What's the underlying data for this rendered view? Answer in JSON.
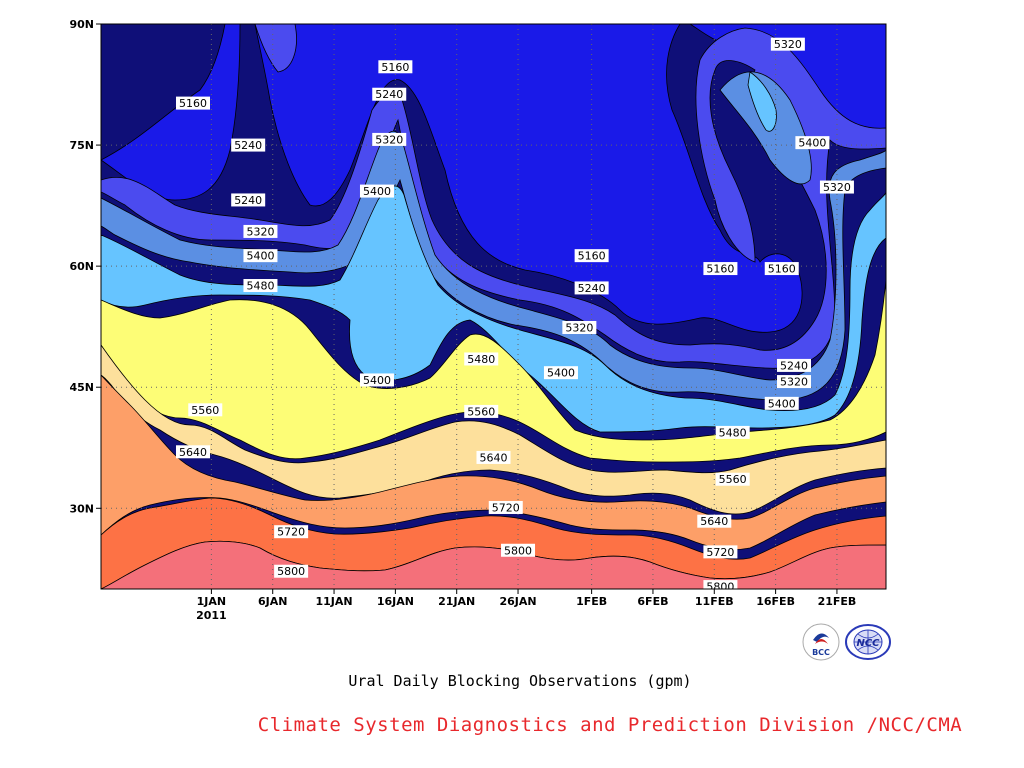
{
  "chart_data": {
    "type": "contour",
    "title": "Ural Daily Blocking Observations (gpm)",
    "xlabel": "",
    "ylabel": "",
    "x_ticks": [
      "1JAN",
      "6JAN",
      "11JAN",
      "16JAN",
      "21JAN",
      "26JAN",
      "1FEB",
      "6FEB",
      "11FEB",
      "16FEB",
      "21FEB"
    ],
    "x_year_label": "2011",
    "y_ticks": [
      "30N",
      "45N",
      "60N",
      "75N",
      "90N"
    ],
    "xlim_days": [
      -9,
      55
    ],
    "ylim_lat": [
      20,
      90
    ],
    "levels": [
      5160,
      5240,
      5320,
      5400,
      5480,
      5560,
      5640,
      5720,
      5800
    ],
    "colors": {
      "lt5160": "#0f0f78",
      "5160_5240": "#1a1ae8",
      "5240_5320": "#4b4bef",
      "5320_5400": "#5b8fe3",
      "5400_5480": "#66c4ff",
      "5480_5560": "#fdfd76",
      "5560_5640": "#fde09c",
      "5640_5720": "#fd9f68",
      "5720_5800": "#fd7245",
      "gt5800": "#f4707a"
    },
    "contour_labels": [
      {
        "value": "5160",
        "day": -1.5,
        "lat": 80.2
      },
      {
        "value": "5240",
        "day": 3.0,
        "lat": 75.0
      },
      {
        "value": "5240",
        "day": 3.0,
        "lat": 68.2
      },
      {
        "value": "5320",
        "day": 4.0,
        "lat": 64.3
      },
      {
        "value": "5400",
        "day": 4.0,
        "lat": 61.3
      },
      {
        "value": "5480",
        "day": 4.0,
        "lat": 57.6
      },
      {
        "value": "5560",
        "day": -0.5,
        "lat": 42.2
      },
      {
        "value": "5640",
        "day": -1.5,
        "lat": 37.0
      },
      {
        "value": "5720",
        "day": 6.5,
        "lat": 27.1
      },
      {
        "value": "5800",
        "day": 6.5,
        "lat": 22.2
      },
      {
        "value": "5160",
        "day": 15.0,
        "lat": 84.7
      },
      {
        "value": "5240",
        "day": 14.5,
        "lat": 81.3
      },
      {
        "value": "5320",
        "day": 14.5,
        "lat": 75.7
      },
      {
        "value": "5400",
        "day": 13.5,
        "lat": 69.3
      },
      {
        "value": "5400",
        "day": 13.5,
        "lat": 45.9
      },
      {
        "value": "5480",
        "day": 22.0,
        "lat": 48.5
      },
      {
        "value": "5560",
        "day": 22.0,
        "lat": 42.0
      },
      {
        "value": "5640",
        "day": 23.0,
        "lat": 36.3
      },
      {
        "value": "5720",
        "day": 24.0,
        "lat": 30.1
      },
      {
        "value": "5800",
        "day": 25.0,
        "lat": 24.8
      },
      {
        "value": "5160",
        "day": 31.0,
        "lat": 61.3
      },
      {
        "value": "5240",
        "day": 31.0,
        "lat": 57.3
      },
      {
        "value": "5320",
        "day": 30.0,
        "lat": 52.4
      },
      {
        "value": "5400",
        "day": 28.5,
        "lat": 46.8
      },
      {
        "value": "5320",
        "day": 47.0,
        "lat": 87.5
      },
      {
        "value": "5400",
        "day": 49.0,
        "lat": 75.3
      },
      {
        "value": "5320",
        "day": 51.0,
        "lat": 69.8
      },
      {
        "value": "5160",
        "day": 41.5,
        "lat": 59.7
      },
      {
        "value": "5160",
        "day": 46.5,
        "lat": 59.7
      },
      {
        "value": "5240",
        "day": 47.5,
        "lat": 47.7
      },
      {
        "value": "5320",
        "day": 47.5,
        "lat": 45.7
      },
      {
        "value": "5400",
        "day": 46.5,
        "lat": 43.0
      },
      {
        "value": "5480",
        "day": 42.5,
        "lat": 39.4
      },
      {
        "value": "5560",
        "day": 42.5,
        "lat": 33.6
      },
      {
        "value": "5640",
        "day": 41.0,
        "lat": 28.4
      },
      {
        "value": "5720",
        "day": 41.5,
        "lat": 24.6
      },
      {
        "value": "5800",
        "day": 41.5,
        "lat": 20.3
      }
    ]
  },
  "footer": {
    "subtitle": "Ural Daily Blocking Observations (gpm)",
    "credit": "Climate System Diagnostics and Prediction Division /NCC/CMA",
    "logo_bcc_text": "BCC",
    "logo_ncc_text": "NCC"
  }
}
